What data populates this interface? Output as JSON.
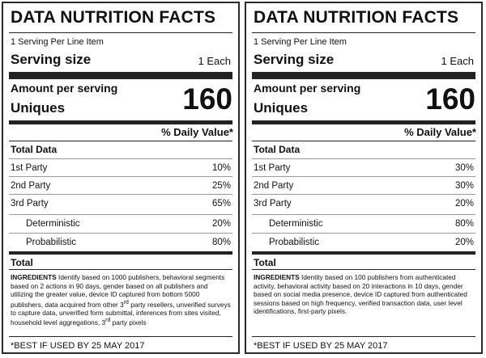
{
  "labels": [
    {
      "title": "DATA NUTRITION FACTS",
      "servings_per": "1 Serving Per Line Item",
      "serving_size_label": "Serving size",
      "serving_size_value": "1 Each",
      "amount_label": "Amount per serving",
      "uniques_label": "Uniques",
      "uniques_value": "160",
      "daily_value_header": "% Daily Value*",
      "total_data_label": "Total Data",
      "rows": [
        {
          "label": "1st Party",
          "value": "10%"
        },
        {
          "label": "2nd Party",
          "value": "25%"
        },
        {
          "label": "3rd Party",
          "value": "65%"
        },
        {
          "label": "Deterministic",
          "value": "20%"
        },
        {
          "label": "Probabilistic",
          "value": "80%"
        }
      ],
      "total_label": "Total",
      "ingredients_label": "INGREDIENTS",
      "ingredients_text_1": " Identify based on 1000 publishers, behavioral segments based on 2 actions in 90 days, gender based on all publishers and utilizing the greater value, device ID captured from bottom 5000 publishers, data acquired from other 3",
      "ingredients_sup_1": "rd",
      "ingredients_text_2": " party resellers, unverified surveys to capture data, unverified form submittal, inferences from sites visited, household level aggregations, 3",
      "ingredients_sup_2": "rd",
      "ingredients_text_3": " party pixels",
      "best_if": "*BEST IF USED BY 25 MAY 2017"
    },
    {
      "title": "DATA NUTRITION FACTS",
      "servings_per": "1 Serving Per Line Item",
      "serving_size_label": "Serving size",
      "serving_size_value": "1 Each",
      "amount_label": "Amount per serving",
      "uniques_label": "Uniques",
      "uniques_value": "160",
      "daily_value_header": "% Daily Value*",
      "total_data_label": "Total Data",
      "rows": [
        {
          "label": "1st Party",
          "value": "30%"
        },
        {
          "label": "2nd Party",
          "value": "30%"
        },
        {
          "label": "3rd Party",
          "value": "20%"
        },
        {
          "label": "Deterministic",
          "value": "80%"
        },
        {
          "label": "Probabilistic",
          "value": "20%"
        }
      ],
      "total_label": "Total",
      "ingredients_label": "INGREDIENTS",
      "ingredients_text_1": " Identity based on 100 publishers from authenticated activity, behavioral activity based on 20 interactions in 10 days, gender based on social media presence, device ID captured from authenticated sessions based on high frequency, verified transaction data, user level identifications, first-party pixels.",
      "ingredients_sup_1": "",
      "ingredients_text_2": "",
      "ingredients_sup_2": "",
      "ingredients_text_3": "",
      "best_if": "*BEST IF USED BY 25 MAY 2017"
    }
  ]
}
